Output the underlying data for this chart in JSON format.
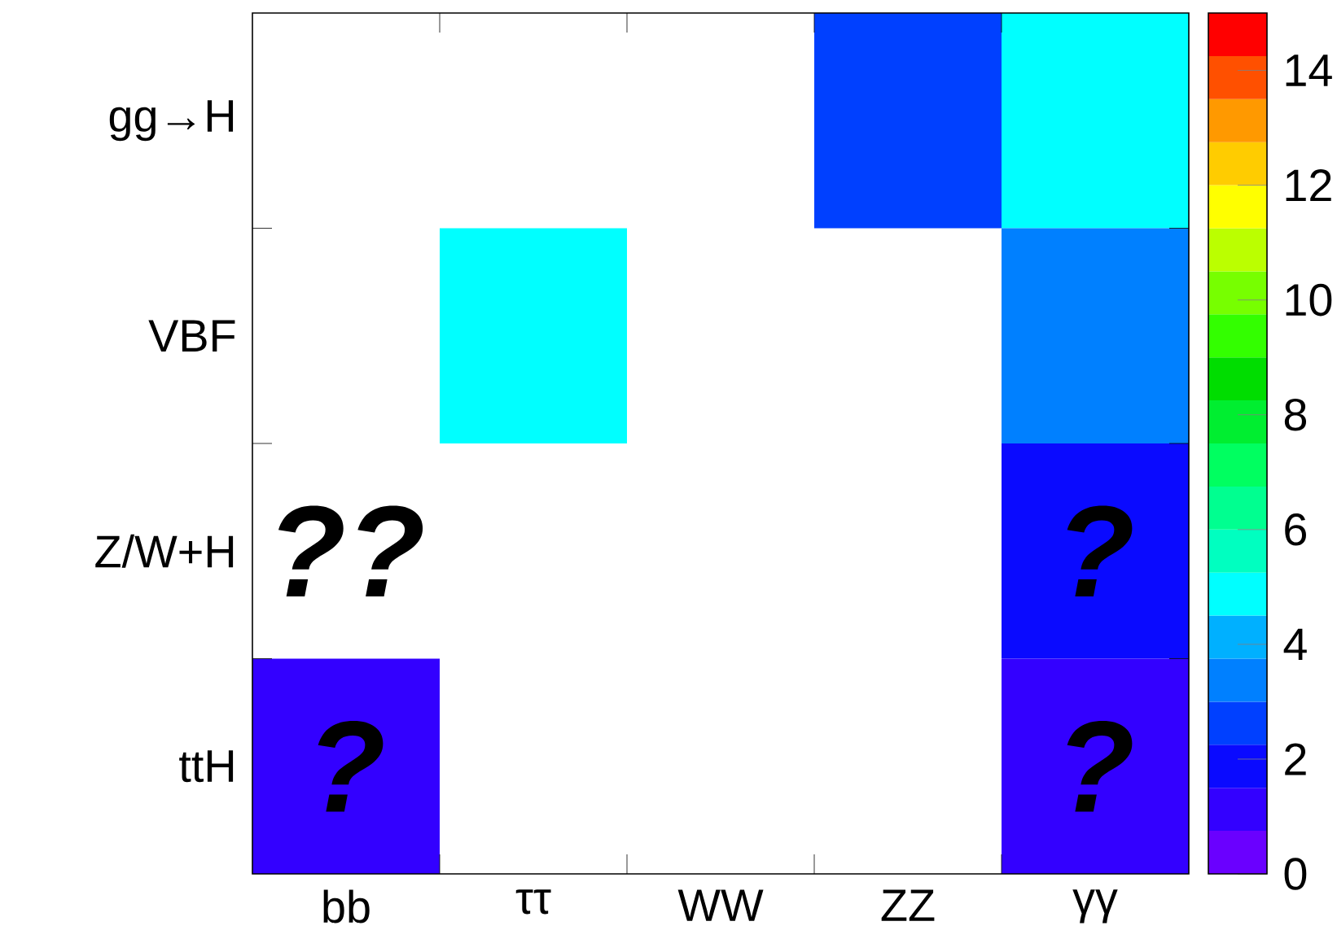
{
  "chart_data": {
    "type": "heatmap",
    "categories": [
      "bb",
      "ττ",
      "WW",
      "ZZ",
      "γγ"
    ],
    "y_categories": [
      "gg→H",
      "VBF",
      "Z/W+H",
      "ttH"
    ],
    "cells": [
      [
        null,
        null,
        null,
        2.5,
        5
      ],
      [
        null,
        5,
        null,
        null,
        3.5
      ],
      [
        null,
        null,
        null,
        null,
        2
      ],
      [
        1,
        null,
        null,
        null,
        1
      ]
    ],
    "cell_labels": [
      [
        null,
        null,
        null,
        null,
        null
      ],
      [
        null,
        null,
        null,
        null,
        null
      ],
      [
        "??",
        null,
        null,
        null,
        "?"
      ],
      [
        "?",
        null,
        null,
        null,
        "?"
      ]
    ],
    "clim": [
      0,
      15
    ],
    "cticks": [
      0,
      2,
      4,
      6,
      8,
      10,
      12,
      14
    ]
  }
}
